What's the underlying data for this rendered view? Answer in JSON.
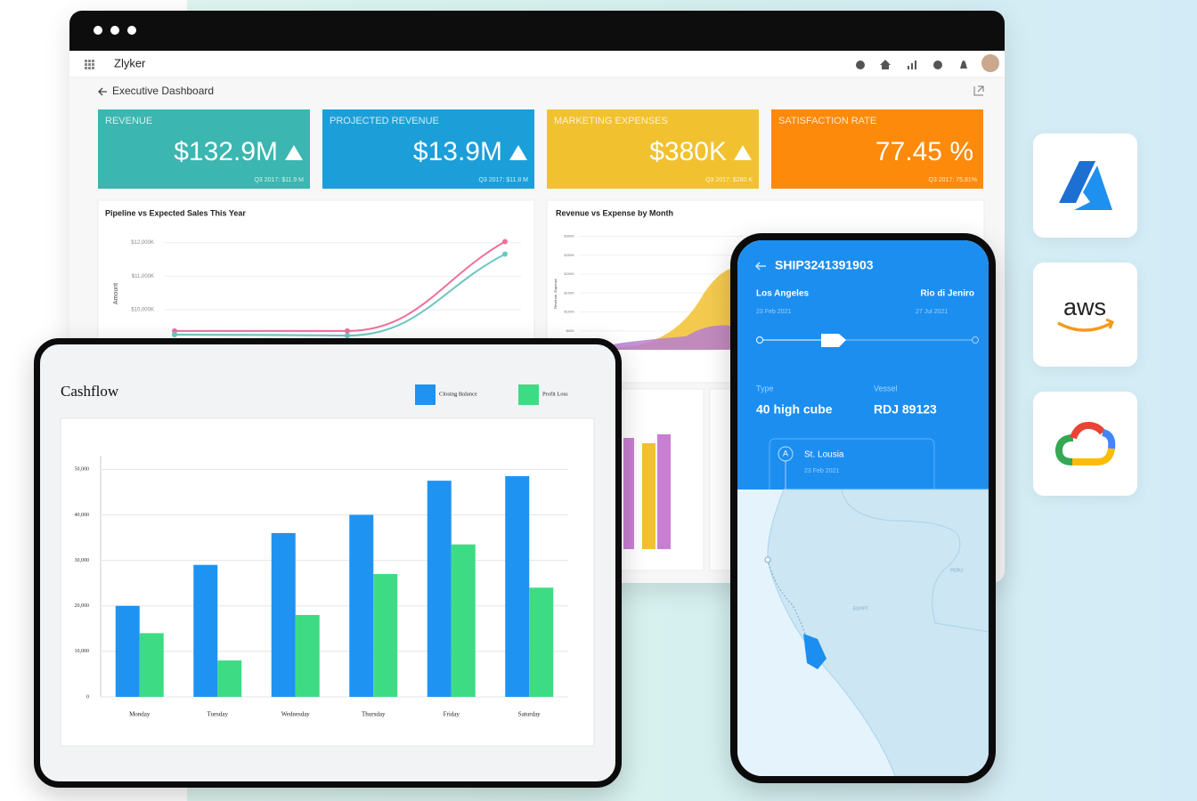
{
  "dashboard": {
    "app_name": "Zlyker",
    "page_title": "Executive Dashboard",
    "kpis": [
      {
        "label": "REVENUE",
        "value": "$132.9M",
        "compare": "Q3 2017: $11.9 M",
        "color": "#3bb6b0",
        "trend_up": true
      },
      {
        "label": "PROJECTED REVENUE",
        "value": "$13.9M",
        "compare": "Q3 2017: $11.8 M",
        "color": "#1c9fd9",
        "trend_up": true
      },
      {
        "label": "MARKETING EXPENSES",
        "value": "$380K",
        "compare": "Q3 2017: $280 K",
        "color": "#f2c12f",
        "trend_up": true
      },
      {
        "label": "SATISFACTION RATE",
        "value": "77.45 %",
        "compare": "Q3 2017: 75.81%",
        "color": "#fd8a0b",
        "trend_up": false
      }
    ],
    "pipeline_chart": {
      "type": "line",
      "title": "Pipeline vs Expected Sales This Year",
      "ylabel": "Amount",
      "categories": [
        null,
        null,
        null
      ],
      "series": [
        {
          "color": "#ef6f9c",
          "values": [
            9370,
            9370,
            12030
          ]
        },
        {
          "color": "#6cc7c4",
          "values": [
            9260,
            9230,
            11660
          ]
        }
      ],
      "ylim": [
        9100,
        12600
      ],
      "yticks": [
        {
          "value": 12000,
          "label": "$12,000K"
        },
        {
          "value": 11000,
          "label": "$11,000K"
        },
        {
          "value": 10000,
          "label": "$10,000K"
        }
      ]
    },
    "revenue_chart": {
      "title": "Revenue vs Expense by Month",
      "ylabel": "Revenue, Expense",
      "ylim": [
        0,
        320000
      ],
      "yticks": [
        {
          "value": 300000,
          "label": "$300K"
        },
        {
          "value": 250000,
          "label": "$250K"
        },
        {
          "value": 200000,
          "label": "$200K"
        },
        {
          "value": 150000,
          "label": "$150K"
        },
        {
          "value": 100000,
          "label": "$100K"
        },
        {
          "value": 50000,
          "label": "$50K"
        }
      ]
    }
  },
  "chart_data": {
    "type": "bar",
    "title": "Cashflow",
    "categories": [
      "Monday",
      "Tuesday",
      "Wednesday",
      "Thursday",
      "Friday",
      "Saturday"
    ],
    "series": [
      {
        "name": "Closing Balance",
        "color": "#1f93f2",
        "values": [
          20000,
          29000,
          36000,
          40000,
          47500,
          48500
        ]
      },
      {
        "name": "Profit Loss",
        "color": "#3ddc84",
        "values": [
          14000,
          8000,
          18000,
          27000,
          33500,
          24000
        ]
      }
    ],
    "ylim": [
      0,
      53000
    ],
    "yticks": [
      0,
      {
        "value": 10000,
        "label": "10,000"
      },
      {
        "value": 20000,
        "label": "20,000"
      },
      {
        "value": 30000,
        "label": "30,000"
      },
      {
        "value": 40000,
        "label": "40,000"
      },
      {
        "value": 50000,
        "label": "50,000"
      }
    ],
    "grid": true
  },
  "shipment": {
    "id": "SHIP3241391903",
    "origin": {
      "city": "Los Angeles",
      "date": "23 Feb 2021"
    },
    "destination": {
      "city": "Rio di Jeniro",
      "date": "27 Jul 2021"
    },
    "type_label": "Type",
    "type_value": "40 high cube",
    "vessel_label": "Vessel",
    "vessel_value": "RDJ 89123",
    "stop": {
      "marker": "A",
      "name": "St. Lousia",
      "date": "23 Feb 2021"
    },
    "map_labels": [
      "EGYPT",
      "PERU"
    ]
  },
  "integrations": {
    "aws": "aws"
  }
}
